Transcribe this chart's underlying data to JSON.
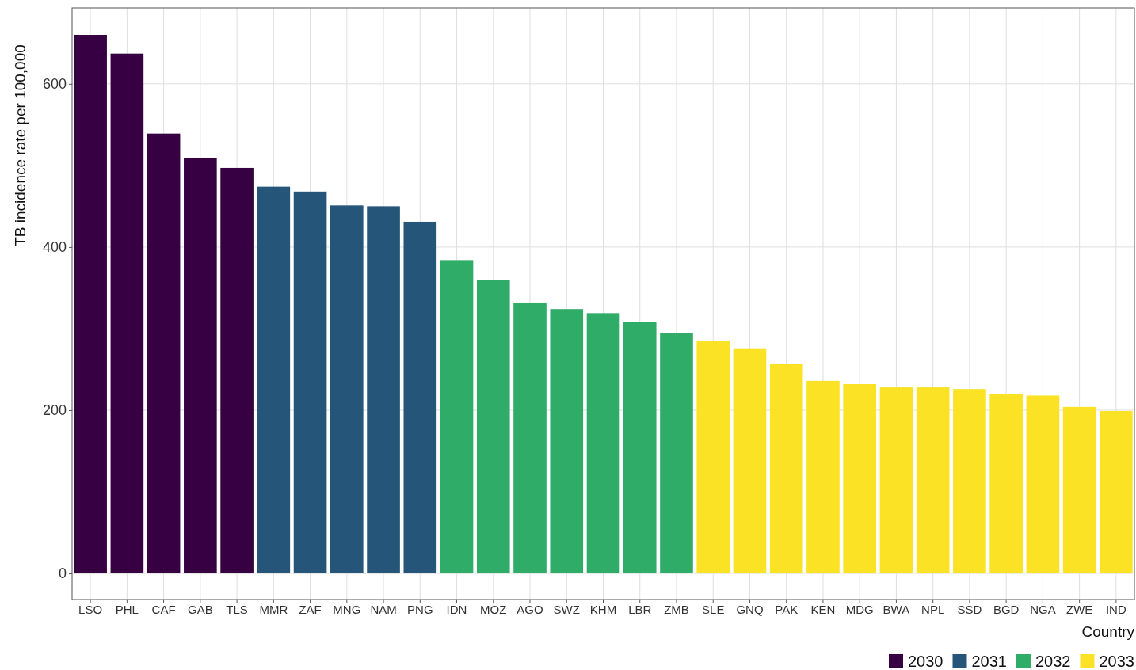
{
  "chart_data": {
    "type": "bar",
    "xlabel": "Country",
    "ylabel": "TB incidence rate per 100,000",
    "categories": [
      "LSO",
      "PHL",
      "CAF",
      "GAB",
      "TLS",
      "MMR",
      "ZAF",
      "MNG",
      "NAM",
      "PNG",
      "IDN",
      "MOZ",
      "AGO",
      "SWZ",
      "KHM",
      "LBR",
      "ZMB",
      "SLE",
      "GNQ",
      "PAK",
      "KEN",
      "MDG",
      "BWA",
      "NPL",
      "SSD",
      "BGD",
      "NGA",
      "ZWE",
      "IND"
    ],
    "series": [
      {
        "name": "2030",
        "color": "#360042",
        "values": [
          660,
          637,
          539,
          509,
          497,
          null,
          null,
          null,
          null,
          null,
          null,
          null,
          null,
          null,
          null,
          null,
          null,
          null,
          null,
          null,
          null,
          null,
          null,
          null,
          null,
          null,
          null,
          null,
          null
        ]
      },
      {
        "name": "2031",
        "color": "#26557a",
        "values": [
          null,
          null,
          null,
          null,
          null,
          474,
          468,
          451,
          450,
          431,
          null,
          null,
          null,
          null,
          null,
          null,
          null,
          null,
          null,
          null,
          null,
          null,
          null,
          null,
          null,
          null,
          null,
          null,
          null
        ]
      },
      {
        "name": "2032",
        "color": "#2fad68",
        "values": [
          null,
          null,
          null,
          null,
          null,
          null,
          null,
          null,
          null,
          null,
          384,
          360,
          332,
          324,
          319,
          308,
          295,
          null,
          null,
          null,
          null,
          null,
          null,
          null,
          null,
          null,
          null,
          null,
          null
        ]
      },
      {
        "name": "2033",
        "color": "#fbe225",
        "values": [
          null,
          null,
          null,
          null,
          null,
          null,
          null,
          null,
          null,
          null,
          null,
          null,
          null,
          null,
          null,
          null,
          null,
          285,
          275,
          257,
          236,
          232,
          228,
          228,
          226,
          220,
          218,
          204,
          199
        ]
      }
    ],
    "ylim": [
      -32,
      693
    ],
    "yticks": [
      0,
      200,
      400,
      600
    ],
    "grid": true,
    "legend": "bottom right"
  }
}
